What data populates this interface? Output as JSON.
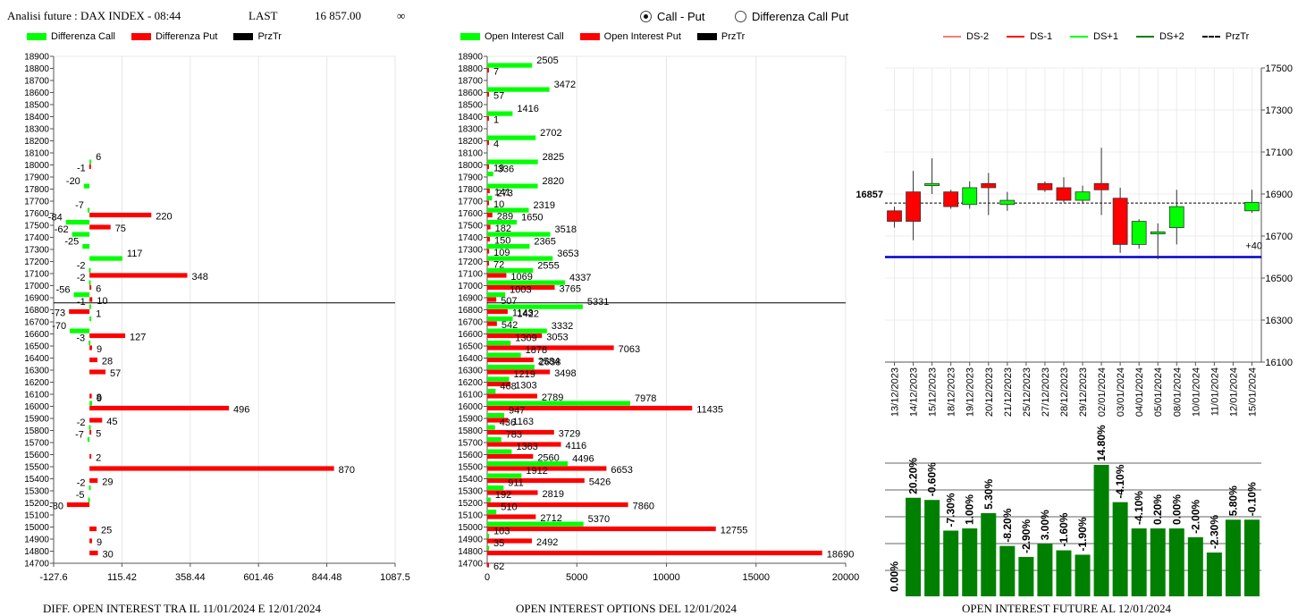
{
  "header": {
    "title": "Analisi future : DAX INDEX - 08:44",
    "last_label": "LAST",
    "last_value": "16 857.00",
    "infinity_symbol": "∞"
  },
  "view_toggle": {
    "options": [
      "Call - Put",
      "Differenza Call Put"
    ],
    "selected": "Call - Put"
  },
  "colors": {
    "green": "#00ff00",
    "red": "#ff0000",
    "black": "#000000",
    "dark_green": "#008000",
    "salmon": "#f08070",
    "blue": "#0000cc"
  },
  "legends": {
    "diff": [
      "Differenza Call",
      "Differenza Put",
      "PrzTr"
    ],
    "oi": [
      "Open Interest Call",
      "Open Interest Put",
      "PrzTr"
    ],
    "candles": [
      "DS-2",
      "DS-1",
      "DS+1",
      "DS+2",
      "PrzTr"
    ]
  },
  "captions": {
    "diff": "DIFF. OPEN INTEREST TRA IL 11/01/2024 E 12/01/2024",
    "oi": "OPEN INTEREST OPTIONS DEL 12/01/2024",
    "future": "OPEN INTEREST FUTURE AL 12/01/2024"
  },
  "chart_data": [
    {
      "type": "bar",
      "orientation": "horizontal",
      "caption": "DIFF. OPEN INTEREST TRA IL 11/01/2024 E 12/01/2024",
      "categories": [
        18900,
        18800,
        18700,
        18600,
        18500,
        18400,
        18300,
        18200,
        18100,
        18000,
        17900,
        17800,
        17700,
        17600,
        17500,
        17400,
        17300,
        17200,
        17100,
        17000,
        16900,
        16800,
        16700,
        16600,
        16500,
        16400,
        16300,
        16200,
        16100,
        16000,
        15900,
        15800,
        15700,
        15600,
        15500,
        15400,
        15300,
        15200,
        15100,
        15000,
        14900,
        14800,
        14700
      ],
      "series": [
        {
          "name": "Differenza Call",
          "values": [
            null,
            null,
            null,
            null,
            null,
            null,
            null,
            null,
            null,
            6,
            null,
            -20,
            null,
            -7,
            -84,
            -62,
            -25,
            117,
            -2,
            -2,
            -56,
            -1,
            1,
            -70,
            -3,
            null,
            null,
            null,
            null,
            9,
            null,
            -2,
            -7,
            null,
            null,
            null,
            -2,
            -5,
            null,
            null,
            null,
            null,
            null
          ]
        },
        {
          "name": "Differenza Put",
          "values": [
            null,
            null,
            null,
            null,
            null,
            null,
            null,
            null,
            null,
            -1,
            null,
            null,
            null,
            220,
            75,
            null,
            null,
            null,
            348,
            6,
            10,
            -73,
            null,
            127,
            9,
            28,
            57,
            null,
            8,
            496,
            45,
            5,
            null,
            2,
            870,
            29,
            null,
            -80,
            null,
            25,
            9,
            30,
            null
          ]
        }
      ],
      "przTr": 16857,
      "xlim": [
        -127.6,
        1087.5
      ],
      "x_ticks": [
        "-127.6",
        "115.42",
        "358.44",
        "601.46",
        "844.48",
        "1087.5"
      ]
    },
    {
      "type": "bar",
      "orientation": "horizontal",
      "caption": "OPEN INTEREST OPTIONS DEL 12/01/2024",
      "categories": [
        18900,
        18800,
        18700,
        18600,
        18500,
        18400,
        18300,
        18200,
        18100,
        18000,
        17900,
        17800,
        17700,
        17600,
        17500,
        17400,
        17300,
        17200,
        17100,
        17000,
        16900,
        16800,
        16700,
        16600,
        16500,
        16400,
        16300,
        16200,
        16100,
        16000,
        15900,
        15800,
        15700,
        15600,
        15500,
        15400,
        15300,
        15200,
        15100,
        15000,
        14900,
        14800,
        14700
      ],
      "series": [
        {
          "name": "Open Interest Call",
          "values": [
            null,
            2505,
            null,
            3472,
            null,
            1416,
            null,
            2702,
            null,
            2825,
            336,
            2820,
            273,
            2319,
            1650,
            3518,
            2365,
            3653,
            2555,
            4337,
            1003,
            5331,
            1422,
            3332,
            1309,
            1878,
            2638,
            1219,
            468,
            7978,
            947,
            436,
            783,
            1363,
            4496,
            1912,
            911,
            192,
            510,
            5370,
            103,
            35,
            null
          ]
        },
        {
          "name": "Open Interest Put",
          "values": [
            null,
            7,
            null,
            57,
            null,
            1,
            null,
            4,
            null,
            19,
            null,
            141,
            10,
            289,
            182,
            150,
            109,
            72,
            1069,
            3765,
            507,
            1143,
            542,
            3053,
            7063,
            2584,
            3498,
            1303,
            2789,
            11435,
            1163,
            3729,
            4116,
            2560,
            6653,
            5426,
            2819,
            7860,
            2712,
            12755,
            2492,
            18690,
            62
          ]
        }
      ],
      "przTr": 16857,
      "xlim": [
        0,
        20000
      ],
      "x_ticks": [
        "0",
        "5000",
        "10000",
        "15000",
        "20000"
      ]
    },
    {
      "type": "candlestick",
      "dates": [
        "13/12/2023",
        "14/12/2023",
        "15/12/2023",
        "18/12/2023",
        "19/12/2023",
        "20/12/2023",
        "21/12/2023",
        "25/12/2023",
        "27/12/2023",
        "28/12/2023",
        "29/12/2023",
        "02/01/2024",
        "03/01/2024",
        "04/01/2024",
        "05/01/2024",
        "08/01/2024",
        "10/01/2024",
        "11/01/2024",
        "12/01/2024",
        "15/01/2024"
      ],
      "candles": [
        {
          "open": 16820,
          "close": 16770,
          "high": 16840,
          "low": 16740
        },
        {
          "open": 16910,
          "close": 16770,
          "high": 17010,
          "low": 16680
        },
        {
          "open": 16940,
          "close": 16950,
          "high": 17070,
          "low": 16900
        },
        {
          "open": 16910,
          "close": 16840,
          "high": 16920,
          "low": 16830
        },
        {
          "open": 16850,
          "close": 16930,
          "high": 16960,
          "low": 16830
        },
        {
          "open": 16950,
          "close": 16930,
          "high": 17000,
          "low": 16800
        },
        {
          "open": 16850,
          "close": 16870,
          "high": 16910,
          "low": 16820
        },
        null,
        {
          "open": 16950,
          "close": 16920,
          "high": 16960,
          "low": 16910
        },
        {
          "open": 16930,
          "close": 16870,
          "high": 16980,
          "low": 16860
        },
        {
          "open": 16870,
          "close": 16910,
          "high": 16940,
          "low": 16860
        },
        {
          "open": 16950,
          "close": 16920,
          "high": 17120,
          "low": 16800
        },
        {
          "open": 16880,
          "close": 16660,
          "high": 16930,
          "low": 16620
        },
        {
          "open": 16660,
          "close": 16770,
          "high": 16780,
          "low": 16640
        },
        {
          "open": 16710,
          "close": 16720,
          "high": 16760,
          "low": 16590
        },
        {
          "open": 16740,
          "close": 16840,
          "high": 16920,
          "low": 16660
        },
        null,
        null,
        null,
        {
          "open": 16820,
          "close": 16860,
          "high": 16920,
          "low": 16810
        }
      ],
      "przTr": 16857,
      "przTr_label": "16857",
      "level_line": 16600,
      "level_label": "+40",
      "ylim": [
        16100,
        17500
      ],
      "y_ticks": [
        "17500",
        "17300",
        "17100",
        "16900",
        "16700",
        "16500",
        "16300",
        "16100"
      ]
    },
    {
      "type": "bar",
      "caption": "OPEN INTEREST FUTURE AL 12/01/2024",
      "categories": [
        "13/12/2023",
        "14/12/2023",
        "15/12/2023",
        "18/12/2023",
        "19/12/2023",
        "20/12/2023",
        "21/12/2023",
        "25/12/2023",
        "27/12/2023",
        "28/12/2023",
        "29/12/2023",
        "02/01/2024",
        "03/01/2024",
        "04/01/2024",
        "05/01/2024",
        "08/01/2024",
        "10/01/2024",
        "11/01/2024",
        "12/01/2024",
        "15/01/2024"
      ],
      "values": [
        null,
        20.2,
        -0.6,
        -7.3,
        1.0,
        5.3,
        -8.2,
        -2.9,
        3.0,
        -1.6,
        -1.9,
        14.8,
        -4.1,
        -4.1,
        0.2,
        0.0,
        -2.0,
        -2.3,
        5.8,
        -0.1
      ],
      "labels": [
        "0.00%",
        "20.20%",
        "-0.60%",
        "-7.30%",
        "1.00%",
        "5.30%",
        "-8.20%",
        "-2.90%",
        "3.00%",
        "-1.60%",
        "-1.90%",
        "14.80%",
        "-4.10%",
        "-4.10%",
        "0.20%",
        "0.00%",
        "-2.00%",
        "-2.30%",
        "5.80%",
        "-0.10%"
      ],
      "level_index": [
        null,
        125,
        124,
        110,
        111,
        118,
        103,
        98,
        104,
        101,
        99,
        140,
        123,
        111,
        111,
        111,
        107,
        100,
        115,
        115
      ]
    }
  ]
}
